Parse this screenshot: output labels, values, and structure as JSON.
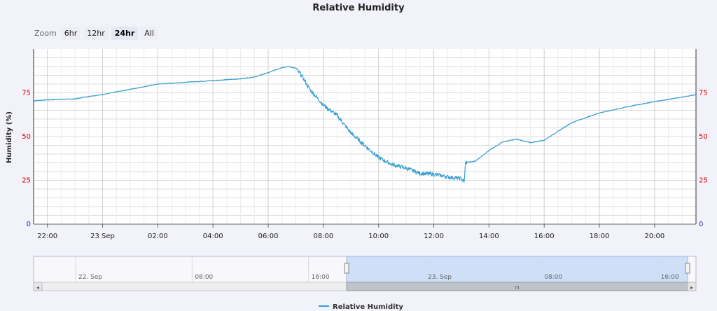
{
  "title": "Relative Humidity",
  "zoom": {
    "label": "Zoom",
    "buttons": [
      {
        "label": "6hr",
        "selected": false
      },
      {
        "label": "12hr",
        "selected": false
      },
      {
        "label": "24hr",
        "selected": true
      },
      {
        "label": "All",
        "selected": false
      }
    ]
  },
  "colors": {
    "line": "#3a9fd1",
    "left_tick_color": "#e00000",
    "zero_tick_color": "#2222cc",
    "grid": "#dcdcdc",
    "nav_selection": "#cfdff8"
  },
  "chart_data": {
    "type": "line",
    "title": "Relative Humidity",
    "xlabel": "",
    "ylabel": "Humidity (%)",
    "ylim": [
      0,
      100
    ],
    "y_ticks": [
      0,
      25,
      50,
      75
    ],
    "xlim_hours": [
      21.5,
      45.5
    ],
    "x_ticks": [
      {
        "h": 22,
        "label": "22:00"
      },
      {
        "h": 24,
        "label": "23 Sep"
      },
      {
        "h": 26,
        "label": "02:00"
      },
      {
        "h": 28,
        "label": "04:00"
      },
      {
        "h": 30,
        "label": "06:00"
      },
      {
        "h": 32,
        "label": "08:00"
      },
      {
        "h": 34,
        "label": "10:00"
      },
      {
        "h": 36,
        "label": "12:00"
      },
      {
        "h": 38,
        "label": "14:00"
      },
      {
        "h": 40,
        "label": "16:00"
      },
      {
        "h": 42,
        "label": "18:00"
      },
      {
        "h": 44,
        "label": "20:00"
      }
    ],
    "grid": true,
    "legend": "bottom-center",
    "series": [
      {
        "name": "Relative Humidity",
        "x": [
          21.5,
          22.0,
          23.0,
          23.5,
          24.0,
          25.0,
          26.0,
          27.0,
          28.0,
          29.0,
          29.5,
          30.0,
          30.5,
          30.75,
          31.0,
          31.25,
          31.5,
          32.0,
          32.5,
          33.0,
          33.5,
          34.0,
          34.5,
          35.0,
          35.5,
          36.0,
          36.5,
          37.0,
          37.1,
          37.15,
          37.5,
          38.0,
          38.5,
          39.0,
          39.5,
          40.0,
          40.5,
          41.0,
          42.0,
          43.0,
          44.0,
          45.0,
          45.5
        ],
        "y": [
          70.5,
          71,
          71.5,
          73,
          74,
          77,
          80,
          81,
          82,
          83,
          84,
          86.5,
          89.5,
          90,
          89,
          84,
          77,
          68,
          62,
          52,
          45,
          38,
          34,
          32,
          29,
          28.5,
          27,
          26,
          24,
          35,
          36,
          42,
          47,
          48.5,
          46.5,
          48,
          53,
          58,
          63.5,
          67,
          70,
          72.5,
          74
        ]
      }
    ]
  },
  "navigator": {
    "labels": [
      {
        "h": 0,
        "label": "22. Sep"
      },
      {
        "h": 8,
        "label": "08:00"
      },
      {
        "h": 16,
        "label": "16:00"
      },
      {
        "h": 24,
        "label": "23. Sep"
      },
      {
        "h": 32,
        "label": "08:00"
      },
      {
        "h": 40,
        "label": "16:00"
      }
    ],
    "selection_hours": [
      21.5,
      45.5
    ],
    "scroll_grip": "III"
  },
  "legend": {
    "label": "Relative Humidity"
  }
}
